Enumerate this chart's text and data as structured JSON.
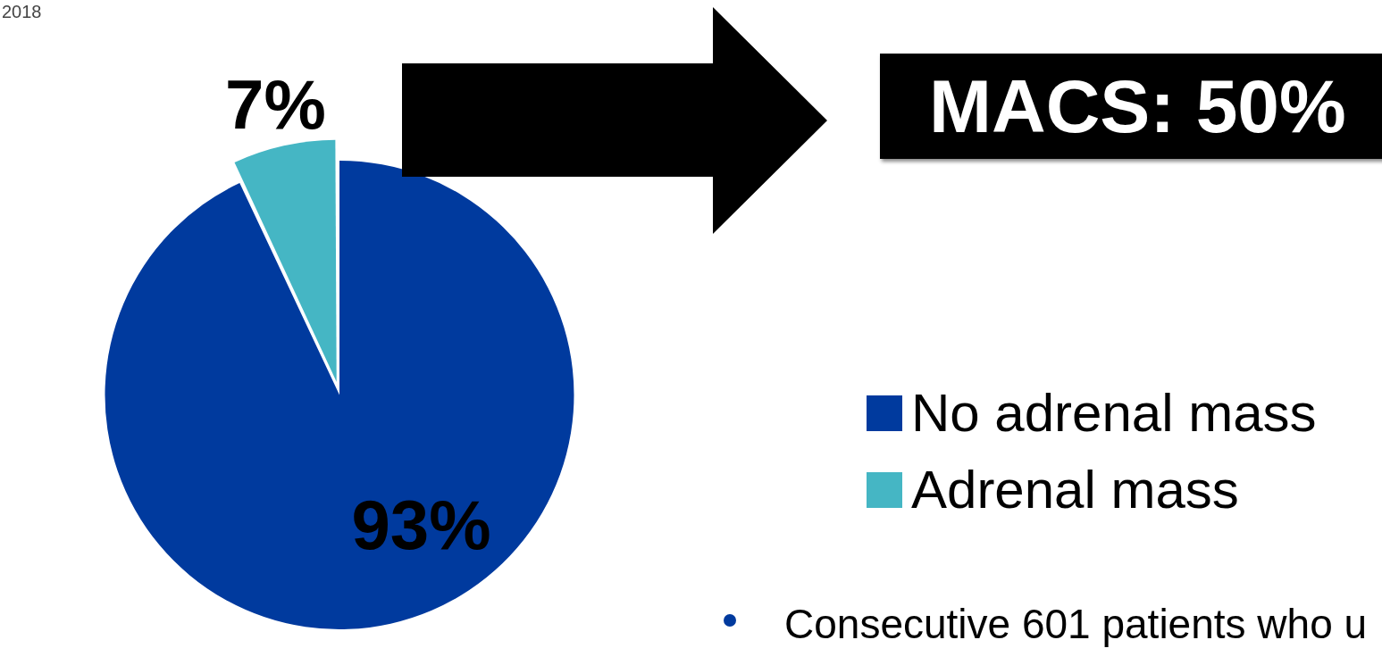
{
  "chart_data": {
    "type": "pie",
    "categories": [
      "No adrenal mass",
      "Adrenal mass"
    ],
    "values": [
      93,
      7
    ],
    "colors": [
      "#003a9e",
      "#45b6c4"
    ],
    "value_labels": [
      "93%",
      "7%"
    ],
    "legend": "right",
    "annotations": [
      "2018",
      "MACS: 50%",
      "Consecutive 601 patients who u"
    ]
  }
}
